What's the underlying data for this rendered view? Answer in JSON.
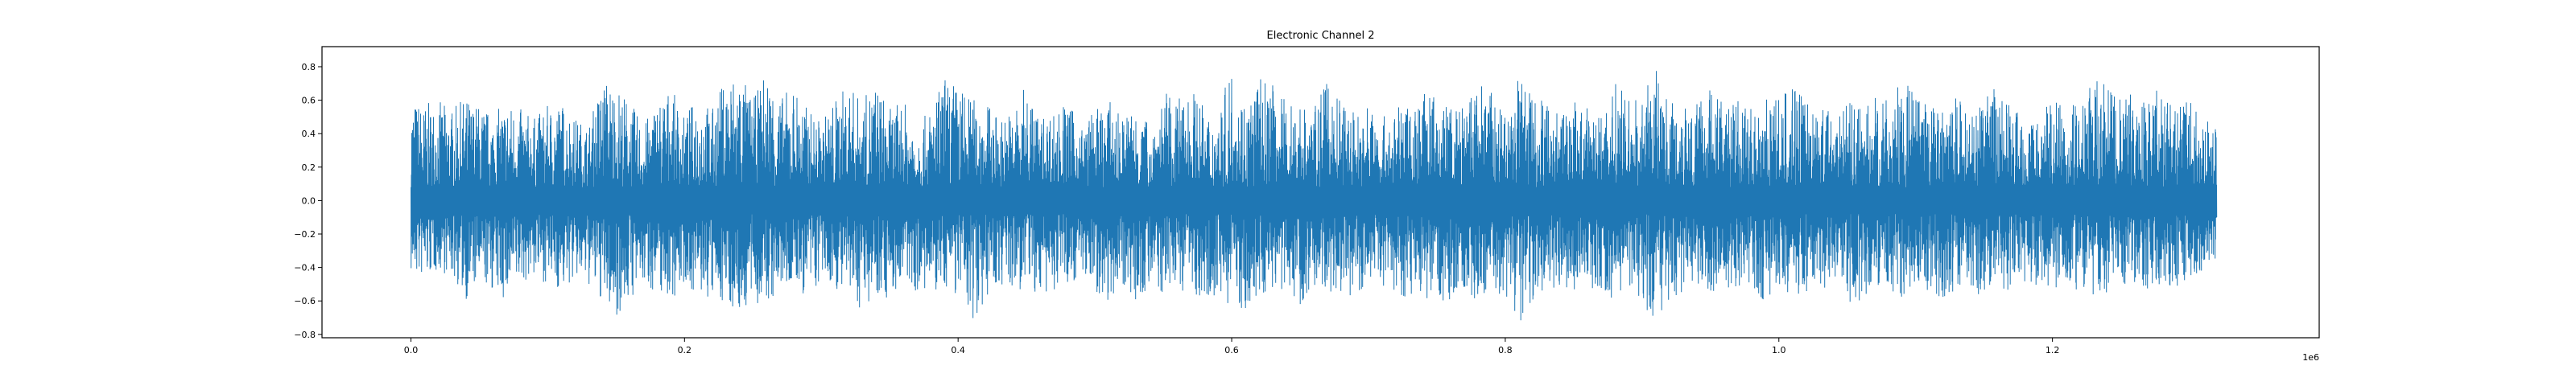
{
  "chart_data": {
    "type": "line",
    "title": "Electronic Channel 2",
    "xlabel": "",
    "ylabel": "",
    "x_offset_text": "1e6",
    "xlim": [
      -0.065,
      1.395
    ],
    "ylim": [
      -0.82,
      0.92
    ],
    "x_ticks": [
      {
        "value": 0.0,
        "label": "0.0"
      },
      {
        "value": 0.2,
        "label": "0.2"
      },
      {
        "value": 0.4,
        "label": "0.4"
      },
      {
        "value": 0.6,
        "label": "0.6"
      },
      {
        "value": 0.8,
        "label": "0.8"
      },
      {
        "value": 1.0,
        "label": "1.0"
      },
      {
        "value": 1.2,
        "label": "1.2"
      }
    ],
    "y_ticks": [
      {
        "value": 0.8,
        "label": "0.8"
      },
      {
        "value": 0.6,
        "label": "0.6"
      },
      {
        "value": 0.4,
        "label": "0.4"
      },
      {
        "value": 0.2,
        "label": "0.2"
      },
      {
        "value": 0.0,
        "label": "0.0"
      },
      {
        "value": -0.2,
        "label": "−0.2"
      },
      {
        "value": -0.4,
        "label": "−0.4"
      },
      {
        "value": -0.6,
        "label": "−0.6"
      },
      {
        "value": -0.8,
        "label": "−0.8"
      }
    ],
    "grid": false,
    "legend": "none",
    "line_color": "#1f77b4",
    "series": [
      {
        "name": "",
        "x": [
          0.0,
          0.01,
          0.02,
          0.03,
          0.04,
          0.05,
          0.06,
          0.07,
          0.08,
          0.09,
          0.1,
          0.11,
          0.12,
          0.13,
          0.14,
          0.15,
          0.16,
          0.17,
          0.18,
          0.19,
          0.2,
          0.21,
          0.22,
          0.23,
          0.24,
          0.25,
          0.26,
          0.27,
          0.28,
          0.29,
          0.3,
          0.31,
          0.32,
          0.33,
          0.34,
          0.35,
          0.36,
          0.37,
          0.38,
          0.39,
          0.4,
          0.41,
          0.42,
          0.43,
          0.44,
          0.45,
          0.46,
          0.47,
          0.48,
          0.49,
          0.5,
          0.51,
          0.52,
          0.53,
          0.54,
          0.55,
          0.56,
          0.57,
          0.58,
          0.59,
          0.6,
          0.61,
          0.62,
          0.63,
          0.64,
          0.65,
          0.66,
          0.67,
          0.68,
          0.69,
          0.7,
          0.71,
          0.72,
          0.73,
          0.74,
          0.75,
          0.76,
          0.77,
          0.78,
          0.79,
          0.8,
          0.81,
          0.82,
          0.83,
          0.84,
          0.85,
          0.86,
          0.87,
          0.88,
          0.89,
          0.9,
          0.91,
          0.92,
          0.93,
          0.94,
          0.95,
          0.96,
          0.97,
          0.98,
          0.99,
          1.0,
          1.01,
          1.02,
          1.03,
          1.04,
          1.05,
          1.06,
          1.07,
          1.08,
          1.09,
          1.1,
          1.11,
          1.12,
          1.13,
          1.14,
          1.15,
          1.16,
          1.17,
          1.18,
          1.19,
          1.2,
          1.21,
          1.22,
          1.23,
          1.24,
          1.25,
          1.26,
          1.27,
          1.28,
          1.29,
          1.3,
          1.31,
          1.32
        ],
        "y_max": [
          0.62,
          0.58,
          0.6,
          0.55,
          0.62,
          0.58,
          0.52,
          0.6,
          0.55,
          0.5,
          0.57,
          0.6,
          0.5,
          0.45,
          0.75,
          0.7,
          0.6,
          0.45,
          0.62,
          0.68,
          0.5,
          0.65,
          0.55,
          0.75,
          0.8,
          0.6,
          0.8,
          0.62,
          0.7,
          0.55,
          0.48,
          0.62,
          0.7,
          0.6,
          0.72,
          0.55,
          0.6,
          0.45,
          0.55,
          0.75,
          0.7,
          0.62,
          0.6,
          0.5,
          0.55,
          0.7,
          0.5,
          0.55,
          0.6,
          0.45,
          0.55,
          0.6,
          0.5,
          0.6,
          0.45,
          0.65,
          0.6,
          0.7,
          0.55,
          0.52,
          0.82,
          0.6,
          0.75,
          0.7,
          0.6,
          0.62,
          0.55,
          0.72,
          0.6,
          0.55,
          0.6,
          0.5,
          0.55,
          0.6,
          0.65,
          0.62,
          0.6,
          0.55,
          0.75,
          0.65,
          0.5,
          0.78,
          0.7,
          0.62,
          0.55,
          0.6,
          0.55,
          0.52,
          0.72,
          0.6,
          0.62,
          0.8,
          0.6,
          0.7,
          0.6,
          0.7,
          0.62,
          0.6,
          0.55,
          0.7,
          0.6,
          0.7,
          0.65,
          0.55,
          0.62,
          0.6,
          0.55,
          0.62,
          0.6,
          0.72,
          0.65,
          0.55,
          0.6,
          0.62,
          0.55,
          0.6,
          0.7,
          0.55,
          0.6,
          0.5,
          0.62,
          0.55,
          0.6,
          0.72,
          0.75,
          0.6,
          0.65,
          0.6,
          0.7,
          0.55,
          0.6,
          0.5,
          0.45
        ],
        "y_min": [
          -0.45,
          -0.48,
          -0.42,
          -0.46,
          -0.6,
          -0.5,
          -0.55,
          -0.62,
          -0.5,
          -0.46,
          -0.5,
          -0.55,
          -0.48,
          -0.52,
          -0.62,
          -0.7,
          -0.6,
          -0.52,
          -0.55,
          -0.6,
          -0.5,
          -0.58,
          -0.62,
          -0.6,
          -0.7,
          -0.62,
          -0.65,
          -0.55,
          -0.52,
          -0.6,
          -0.5,
          -0.52,
          -0.62,
          -0.65,
          -0.55,
          -0.6,
          -0.5,
          -0.55,
          -0.6,
          -0.52,
          -0.58,
          -0.72,
          -0.6,
          -0.5,
          -0.58,
          -0.52,
          -0.6,
          -0.55,
          -0.5,
          -0.45,
          -0.55,
          -0.6,
          -0.5,
          -0.62,
          -0.52,
          -0.58,
          -0.5,
          -0.6,
          -0.55,
          -0.6,
          -0.62,
          -0.68,
          -0.6,
          -0.52,
          -0.55,
          -0.62,
          -0.5,
          -0.58,
          -0.55,
          -0.6,
          -0.5,
          -0.52,
          -0.55,
          -0.6,
          -0.58,
          -0.65,
          -0.6,
          -0.55,
          -0.62,
          -0.52,
          -0.6,
          -0.75,
          -0.62,
          -0.55,
          -0.5,
          -0.6,
          -0.62,
          -0.55,
          -0.6,
          -0.52,
          -0.62,
          -0.75,
          -0.6,
          -0.55,
          -0.52,
          -0.62,
          -0.58,
          -0.52,
          -0.55,
          -0.6,
          -0.5,
          -0.58,
          -0.6,
          -0.55,
          -0.5,
          -0.62,
          -0.6,
          -0.52,
          -0.55,
          -0.58,
          -0.5,
          -0.55,
          -0.6,
          -0.52,
          -0.55,
          -0.58,
          -0.6,
          -0.52,
          -0.55,
          -0.5,
          -0.55,
          -0.52,
          -0.58,
          -0.6,
          -0.55,
          -0.5,
          -0.52,
          -0.55,
          -0.5,
          -0.52,
          -0.48,
          -0.42,
          -0.35
        ]
      }
    ]
  }
}
